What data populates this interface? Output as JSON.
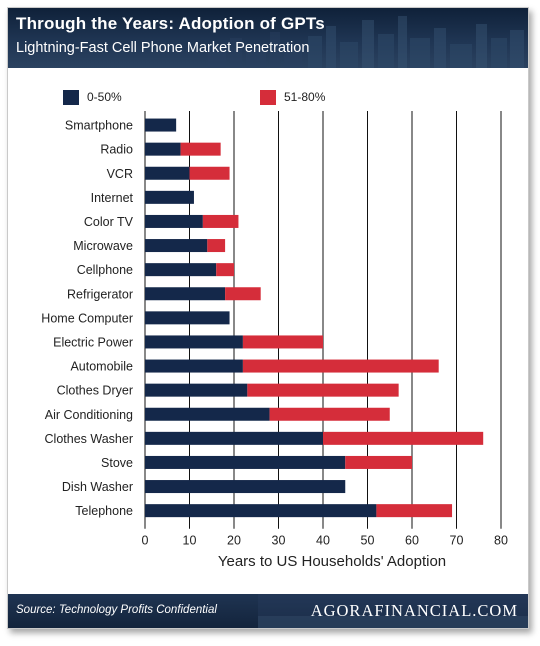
{
  "header": {
    "title": "Through the Years: Adoption of GPTs",
    "subtitle": "Lightning-Fast Cell Phone Market Penetration"
  },
  "footer": {
    "source": "Source: Technology Profits Confidential",
    "brand": "AGORAFINANCIAL.COM"
  },
  "colors": {
    "series_0_50": "#14284a",
    "series_51_80": "#d52d3a",
    "header_bg": "#1b2f4b"
  },
  "chart_data": {
    "type": "bar",
    "orientation": "horizontal",
    "stacked": true,
    "xlabel": "Years to US Households' Adoption",
    "ylabel": "",
    "xlim": [
      0,
      80
    ],
    "xticks": [
      "0",
      "10",
      "20",
      "30",
      "40",
      "50",
      "60",
      "70",
      "80"
    ],
    "grid": "vertical",
    "legend_position": "top",
    "categories": [
      "Smartphone",
      "Radio",
      "VCR",
      "Internet",
      "Color TV",
      "Microwave",
      "Cellphone",
      "Refrigerator",
      "Home Computer",
      "Electric Power",
      "Automobile",
      "Clothes Dryer",
      "Air Conditioning",
      "Clothes Washer",
      "Stove",
      "Dish Washer",
      "Telephone"
    ],
    "series": [
      {
        "name": "0-50%",
        "values": [
          7,
          8,
          10,
          11,
          13,
          14,
          16,
          18,
          19,
          22,
          22,
          23,
          28,
          40,
          45,
          45,
          52
        ]
      },
      {
        "name": "51-80%",
        "values": [
          0,
          9,
          9,
          0,
          8,
          4,
          4,
          8,
          0,
          18,
          44,
          34,
          27,
          36,
          15,
          0,
          17
        ]
      }
    ]
  }
}
